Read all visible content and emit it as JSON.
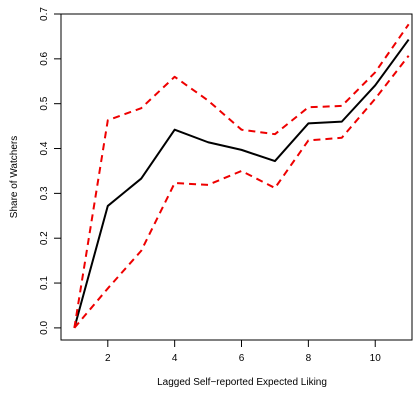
{
  "chart_data": {
    "type": "line",
    "title": "",
    "xlabel": "Lagged Self−reported Expected Liking",
    "ylabel": "Share of Watchers",
    "xlim": [
      0.6,
      11.1
    ],
    "ylim": [
      -0.027,
      0.7
    ],
    "x_ticks": [
      2,
      4,
      6,
      8,
      10
    ],
    "y_ticks": [
      0.0,
      0.1,
      0.2,
      0.3,
      0.4,
      0.5,
      0.6,
      0.7
    ],
    "x_tick_labels": [
      "2",
      "4",
      "6",
      "8",
      "10"
    ],
    "y_tick_labels": [
      "0.0",
      "0.1",
      "0.2",
      "0.3",
      "0.4",
      "0.5",
      "0.6",
      "0.7"
    ],
    "grid": false,
    "legend": "none",
    "x": [
      1,
      2,
      3,
      4,
      5,
      6,
      7,
      8,
      9,
      10,
      11
    ],
    "series": [
      {
        "color": "#000000",
        "dash": "solid",
        "values": [
          0.0,
          0.272,
          0.333,
          0.442,
          0.414,
          0.397,
          0.372,
          0.456,
          0.46,
          0.541,
          0.643
        ]
      },
      {
        "color": "#ee0000",
        "dash": "dashed",
        "values": [
          0.0,
          0.463,
          0.49,
          0.56,
          0.507,
          0.442,
          0.432,
          0.492,
          0.495,
          0.57,
          0.677
        ]
      },
      {
        "color": "#ee0000",
        "dash": "dashed",
        "values": [
          0.0,
          0.088,
          0.172,
          0.323,
          0.319,
          0.35,
          0.312,
          0.418,
          0.424,
          0.511,
          0.607
        ]
      }
    ]
  }
}
